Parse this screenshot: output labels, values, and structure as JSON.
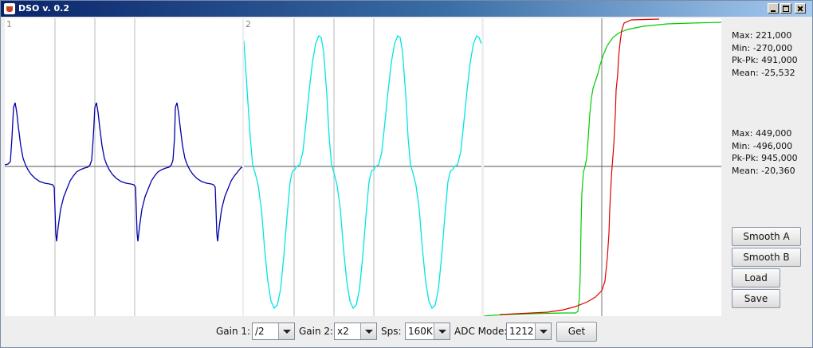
{
  "window": {
    "title": "DSO v. 0.2"
  },
  "plots": {
    "ch1": {
      "label": "1",
      "color": "#0000aa"
    },
    "ch2": {
      "label": "2",
      "color": "#00e5e5"
    },
    "xy": {
      "green": "#00cc00",
      "red": "#dd0000"
    }
  },
  "stats": {
    "ch1": {
      "max": "Max: 221,000",
      "min": "Min: -270,000",
      "pkpk": "Pk-Pk: 491,000",
      "mean": "Mean: -25,532"
    },
    "ch2": {
      "max": "Max: 449,000",
      "min": "Min: -496,000",
      "pkpk": "Pk-Pk: 945,000",
      "mean": "Mean: -20,360"
    }
  },
  "buttons": {
    "smooth_a": "Smooth A",
    "smooth_b": "Smooth B",
    "load": "Load",
    "save": "Save",
    "get": "Get"
  },
  "controls": {
    "gain1": {
      "label": "Gain 1:",
      "value": "/2"
    },
    "gain2": {
      "label": "Gain 2:",
      "value": "x2"
    },
    "sps": {
      "label": "Sps:",
      "value": "160K"
    },
    "adc_mode": {
      "label": "ADC Mode:",
      "value": "1212"
    }
  }
}
